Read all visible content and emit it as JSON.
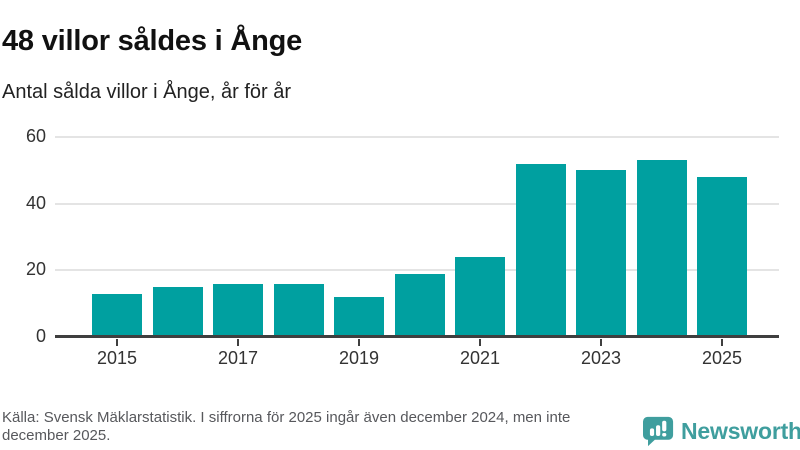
{
  "page": {
    "title": "48 villor såldes i Ånge",
    "subtitle": "Antal sålda villor i Ånge, år för år"
  },
  "chart_data": {
    "type": "bar",
    "title": "48 villor såldes i Ånge",
    "subtitle": "Antal sålda villor i Ånge, år för år",
    "categories": [
      "2015",
      "2016",
      "2017",
      "2018",
      "2019",
      "2020",
      "2021",
      "2022",
      "2023",
      "2024",
      "2025"
    ],
    "values": [
      13,
      15,
      16,
      16,
      12,
      19,
      24,
      52,
      50,
      53,
      48
    ],
    "xticks": [
      "2015",
      "2017",
      "2019",
      "2021",
      "2023",
      "2025"
    ],
    "yticks": [
      0,
      20,
      40,
      60
    ],
    "ylim": [
      0,
      62
    ],
    "xlabel": "",
    "ylabel": "",
    "grid": true,
    "legend_position": "none",
    "bar_color": "#00a0a0",
    "axis_color": "#3f3f3f",
    "gridline_color": "#e4e4e4",
    "tick_label_color": "#333333"
  },
  "footer": {
    "source": "Källa: Svensk Mäklarstatistik. I siffrorna för 2025 ingår även december 2024, men inte december 2025."
  },
  "branding": {
    "name": "Newsworthy",
    "logo_icon": "bar-chart-speech-bubble-icon",
    "color": "#3f9e9e"
  }
}
